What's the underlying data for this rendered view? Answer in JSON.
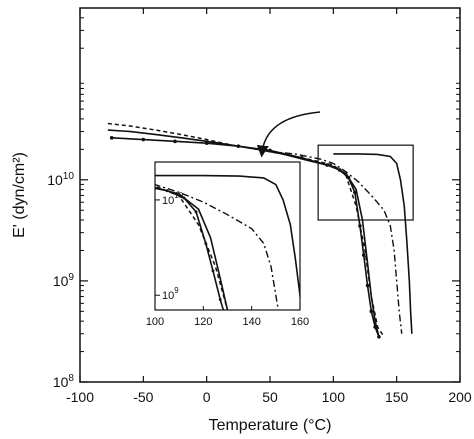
{
  "chart_data": {
    "type": "line",
    "xlabel": "Temperature (°C)",
    "ylabel": "E' (dyn/cm²)",
    "y_scale": "log",
    "xlim": [
      -100,
      200
    ],
    "ylim": [
      100000000,
      500000000000
    ],
    "x_ticks": [
      -100,
      -50,
      0,
      50,
      100,
      150,
      200
    ],
    "x_tick_labels": [
      "-100",
      "-50",
      "0",
      "50",
      "100",
      "150",
      "200"
    ],
    "y_ticks": [
      100000000,
      1000000000,
      10000000000
    ],
    "y_tick_labels": [
      "10^8",
      "10^9",
      "10^10"
    ],
    "grid": false,
    "series": [
      {
        "style": "dashed",
        "x": [
          -78,
          -60,
          -40,
          -20,
          0,
          20,
          40,
          60,
          80,
          100,
          110,
          118,
          125,
          130,
          135,
          140
        ],
        "y": [
          36000000000.0,
          34000000000.0,
          31000000000.0,
          28000000000.0,
          25000000000.0,
          22000000000.0,
          20000000000.0,
          18000000000.0,
          16000000000.0,
          14000000000.0,
          11000000000.0,
          5500000000.0,
          2000000000.0,
          700000000.0,
          350000000.0,
          280000000.0
        ]
      },
      {
        "style": "solid",
        "x": [
          -78,
          -60,
          -40,
          -20,
          0,
          20,
          40,
          60,
          80,
          100,
          110,
          118,
          123,
          127,
          130,
          133,
          136
        ],
        "y": [
          31000000000.0,
          30000000000.0,
          28000000000.0,
          26000000000.0,
          24000000000.0,
          22000000000.0,
          20000000000.0,
          18000000000.0,
          15500000000.0,
          13500000000.0,
          11500000000.0,
          8000000000.0,
          4000000000.0,
          1500000000.0,
          700000000.0,
          400000000.0,
          280000000.0
        ]
      },
      {
        "style": "solid-markers",
        "x": [
          -75,
          -50,
          -25,
          0,
          25,
          50,
          75,
          95,
          105,
          112,
          117,
          121,
          124,
          127,
          130,
          133,
          136
        ],
        "y": [
          26000000000.0,
          25000000000.0,
          24000000000.0,
          23000000000.0,
          21500000000.0,
          19500000000.0,
          16500000000.0,
          14000000000.0,
          12500000000.0,
          10500000000.0,
          7500000000.0,
          3500000000.0,
          1800000000.0,
          900000000.0,
          500000000.0,
          350000000.0,
          280000000.0
        ]
      },
      {
        "style": "dash-dot",
        "x": [
          50,
          70,
          90,
          100,
          110,
          120,
          130,
          140,
          145,
          148,
          150,
          152,
          154
        ],
        "y": [
          19000000000.0,
          18000000000.0,
          16000000000.0,
          14500000000.0,
          12000000000.0,
          9500000000.0,
          7000000000.0,
          5000000000.0,
          3500000000.0,
          2000000000.0,
          1000000000.0,
          500000000.0,
          300000000.0
        ]
      },
      {
        "style": "solid-top",
        "x": [
          100,
          120,
          135,
          145,
          150,
          153,
          156,
          158,
          160,
          161,
          162
        ],
        "y": [
          18000000000.0,
          18000000000.0,
          17800000000.0,
          17000000000.0,
          14500000000.0,
          10000000000.0,
          5500000000.0,
          2500000000.0,
          1000000000.0,
          500000000.0,
          300000000.0
        ]
      }
    ],
    "zoom_box": {
      "x": [
        88,
        163
      ],
      "y": [
        4000000000,
        22000000000
      ]
    },
    "inset": {
      "xlim": [
        100,
        160
      ],
      "ylim": [
        700000000,
        25000000000
      ],
      "x_ticks": [
        100,
        120,
        140,
        160
      ],
      "x_tick_labels": [
        "100",
        "120",
        "140",
        "160"
      ],
      "y_ticks": [
        1000000000,
        10000000000
      ],
      "y_tick_labels": [
        "10^9",
        "10^10"
      ]
    }
  }
}
